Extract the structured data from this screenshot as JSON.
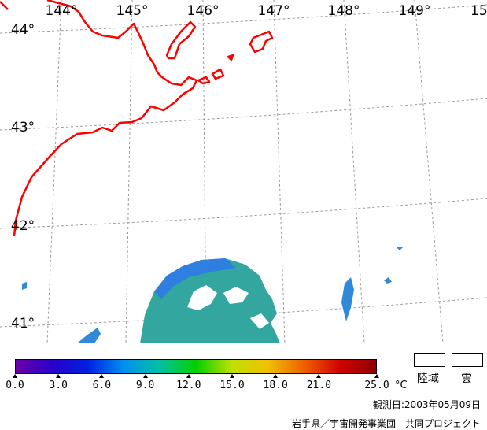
{
  "map": {
    "lon_labels": [
      "144°",
      "145°",
      "146°",
      "147°",
      "148°",
      "149°",
      "15"
    ],
    "lat_labels": [
      "44°",
      "43°",
      "42°",
      "41°"
    ]
  },
  "colorbar": {
    "ticks": [
      "0.0",
      "3.0",
      "6.0",
      "9.0",
      "12.0",
      "15.0",
      "18.0",
      "21.0",
      "25.0"
    ],
    "unit": "°C",
    "colors": [
      "#6a00a8",
      "#2a00c8",
      "#0020e0",
      "#0090f0",
      "#00c0a0",
      "#00d000",
      "#c0e000",
      "#f0c000",
      "#f06000",
      "#d00000",
      "#900000"
    ]
  },
  "legend": {
    "land": "陸域",
    "cloud": "雲"
  },
  "observation": "観測日:2003年05月09日",
  "credit": "岩手県／宇宙開発事業団　共同プロジェクト",
  "coast_color": "#ff0000",
  "grid_color": "#9a9a9a"
}
